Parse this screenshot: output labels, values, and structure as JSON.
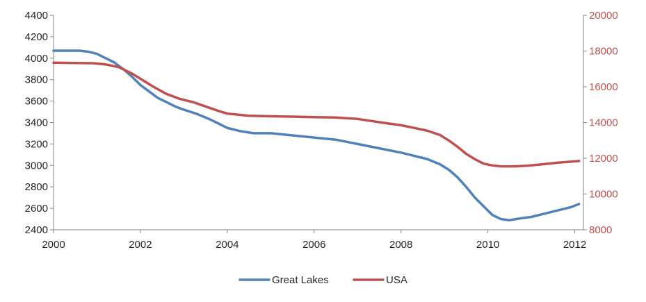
{
  "chart_data": {
    "type": "line",
    "title": "",
    "xlabel": "",
    "ylabel": "",
    "x_ticks": [
      "2000",
      "2002",
      "2004",
      "2006",
      "2008",
      "2010",
      "2012"
    ],
    "xlim": [
      2000,
      2012.2
    ],
    "y_left": {
      "lim": [
        2400,
        4400
      ],
      "ticks": [
        "2400",
        "2600",
        "2800",
        "3000",
        "3200",
        "3400",
        "3600",
        "3800",
        "4000",
        "4200",
        "4400"
      ],
      "color": "#262626"
    },
    "y_right": {
      "lim": [
        8000,
        20000
      ],
      "ticks": [
        "8000",
        "10000",
        "12000",
        "14000",
        "16000",
        "18000",
        "20000"
      ],
      "color": "#C0504D"
    },
    "grid": false,
    "legend": "bottom",
    "series": [
      {
        "name": "Great Lakes",
        "axis": "left",
        "color": "#4F81BD",
        "x": [
          2000.0,
          2000.6,
          2000.8,
          2001.0,
          2001.2,
          2001.4,
          2001.6,
          2001.8,
          2002.0,
          2002.2,
          2002.4,
          2002.6,
          2002.8,
          2003.0,
          2003.3,
          2003.6,
          2003.8,
          2004.0,
          2004.3,
          2004.6,
          2005.0,
          2005.5,
          2006.0,
          2006.5,
          2007.0,
          2007.5,
          2008.0,
          2008.3,
          2008.6,
          2008.9,
          2009.1,
          2009.3,
          2009.5,
          2009.7,
          2009.9,
          2010.1,
          2010.3,
          2010.5,
          2010.8,
          2011.0,
          2011.3,
          2011.6,
          2011.9,
          2012.1
        ],
        "values": [
          4070,
          4070,
          4060,
          4040,
          4000,
          3960,
          3900,
          3830,
          3750,
          3690,
          3630,
          3590,
          3550,
          3520,
          3480,
          3430,
          3390,
          3350,
          3320,
          3300,
          3300,
          3280,
          3260,
          3240,
          3200,
          3160,
          3120,
          3090,
          3060,
          3010,
          2960,
          2890,
          2800,
          2700,
          2620,
          2540,
          2500,
          2490,
          2510,
          2520,
          2550,
          2580,
          2610,
          2640
        ]
      },
      {
        "name": "USA",
        "axis": "right",
        "color": "#C0504D",
        "x": [
          2000.0,
          2000.5,
          2000.9,
          2001.2,
          2001.5,
          2001.8,
          2002.0,
          2002.3,
          2002.6,
          2002.9,
          2003.2,
          2003.5,
          2003.8,
          2004.0,
          2004.5,
          2005.0,
          2005.5,
          2006.0,
          2006.5,
          2007.0,
          2007.5,
          2008.0,
          2008.3,
          2008.6,
          2008.9,
          2009.1,
          2009.3,
          2009.5,
          2009.7,
          2009.9,
          2010.1,
          2010.3,
          2010.6,
          2010.9,
          2011.2,
          2011.6,
          2012.1
        ],
        "values": [
          17350,
          17330,
          17320,
          17250,
          17100,
          16750,
          16450,
          16000,
          15600,
          15330,
          15150,
          14900,
          14650,
          14500,
          14380,
          14350,
          14330,
          14300,
          14280,
          14200,
          14020,
          13850,
          13700,
          13550,
          13300,
          13000,
          12650,
          12250,
          11950,
          11700,
          11600,
          11550,
          11550,
          11580,
          11650,
          11750,
          11850
        ]
      }
    ]
  }
}
